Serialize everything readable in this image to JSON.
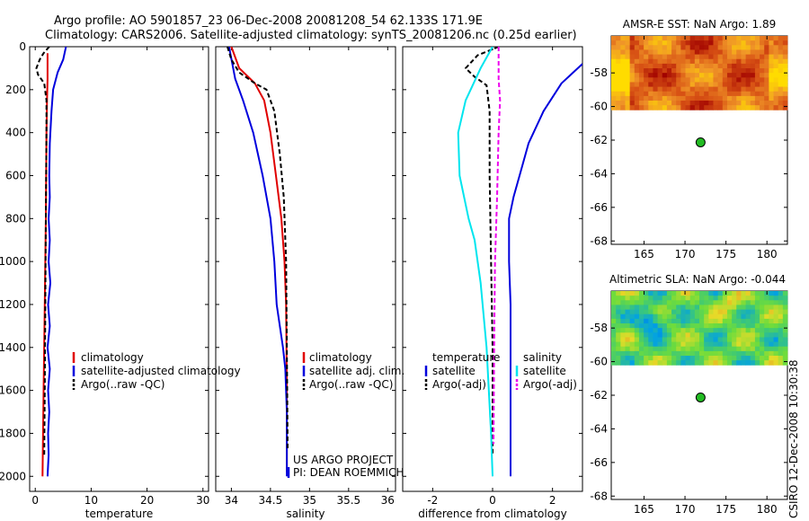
{
  "header": {
    "title_line1": "Argo profile: AO 5901857_23 06-Dec-2008 20081208_54 62.133S 171.9E",
    "title_line2": "Climatology: CARS2006. Satellite-adjusted climatology: synTS_20081206.nc (0.25d earlier)"
  },
  "side_label": "CSIRO 12-Dec-2008 10:30:38",
  "colors": {
    "climatology": "#e00000",
    "satellite": "#0000dd",
    "argo": "#000000",
    "salinity_satellite": "#00e5ee",
    "salinity_argo": "#ee00ee",
    "float_marker": "#22bb22"
  },
  "chart_data": [
    {
      "id": "temperature",
      "type": "line",
      "xlabel": "temperature",
      "ylabel": "",
      "xlim": [
        -1,
        31
      ],
      "ylim": [
        0,
        2070
      ],
      "y_reversed": true,
      "xticks": [
        0,
        10,
        20,
        30
      ],
      "yticks": [
        0,
        200,
        400,
        600,
        800,
        1000,
        1200,
        1400,
        1600,
        1800,
        2000
      ],
      "series": [
        {
          "name": "climatology",
          "color": "#e00000",
          "dash": "",
          "points": [
            [
              2.2,
              30
            ],
            [
              2.2,
              150
            ],
            [
              2.1,
              250
            ],
            [
              2.0,
              400
            ],
            [
              1.9,
              800
            ],
            [
              1.7,
              1200
            ],
            [
              1.5,
              1600
            ],
            [
              1.3,
              2000
            ]
          ]
        },
        {
          "name": "satellite-adjusted climatology",
          "color": "#0000dd",
          "dash": "",
          "points": [
            [
              5.5,
              0
            ],
            [
              5.0,
              60
            ],
            [
              4.0,
              120
            ],
            [
              3.2,
              200
            ],
            [
              2.9,
              300
            ],
            [
              2.6,
              450
            ],
            [
              2.5,
              600
            ],
            [
              2.6,
              700
            ],
            [
              2.4,
              800
            ],
            [
              2.6,
              900
            ],
            [
              2.4,
              1000
            ],
            [
              2.7,
              1100
            ],
            [
              2.3,
              1200
            ],
            [
              2.6,
              1300
            ],
            [
              2.2,
              1400
            ],
            [
              2.6,
              1500
            ],
            [
              2.3,
              1600
            ],
            [
              2.5,
              1700
            ],
            [
              2.3,
              1800
            ],
            [
              2.4,
              1900
            ],
            [
              2.2,
              2000
            ]
          ]
        },
        {
          "name": "Argo(..raw -QC)",
          "color": "#000000",
          "dash": "5,3",
          "points": [
            [
              2.5,
              0
            ],
            [
              1.5,
              30
            ],
            [
              0.8,
              60
            ],
            [
              0.2,
              100
            ],
            [
              0.5,
              130
            ],
            [
              1.6,
              170
            ],
            [
              2.0,
              250
            ],
            [
              2.0,
              400
            ],
            [
              1.9,
              800
            ],
            [
              1.8,
              1200
            ],
            [
              1.7,
              1600
            ],
            [
              1.6,
              1900
            ]
          ]
        }
      ],
      "legend": {
        "placement": "lower-right",
        "entries": [
          "climatology",
          "satellite-adjusted climatology",
          "Argo(..raw -QC)"
        ]
      }
    },
    {
      "id": "salinity",
      "type": "line",
      "xlabel": "salinity",
      "ylabel": "",
      "xlim": [
        33.8,
        36.1
      ],
      "ylim": [
        0,
        2070
      ],
      "y_reversed": true,
      "xticks": [
        34,
        34.5,
        35,
        35.5,
        36
      ],
      "xticklabels": [
        "34",
        "34.5",
        "35",
        "35.5",
        "36"
      ],
      "series": [
        {
          "name": "climatology",
          "color": "#e00000",
          "dash": "",
          "points": [
            [
              34.0,
              0
            ],
            [
              34.1,
              100
            ],
            [
              34.3,
              170
            ],
            [
              34.42,
              250
            ],
            [
              34.5,
              400
            ],
            [
              34.57,
              600
            ],
            [
              34.64,
              800
            ],
            [
              34.68,
              1000
            ],
            [
              34.7,
              1200
            ],
            [
              34.71,
              1600
            ],
            [
              34.71,
              1980
            ]
          ]
        },
        {
          "name": "satellite adj. clim.",
          "color": "#0000dd",
          "dash": "",
          "points": [
            [
              33.97,
              0
            ],
            [
              34.05,
              150
            ],
            [
              34.15,
              250
            ],
            [
              34.28,
              400
            ],
            [
              34.4,
              600
            ],
            [
              34.5,
              800
            ],
            [
              34.55,
              1000
            ],
            [
              34.58,
              1200
            ],
            [
              34.62,
              1300
            ],
            [
              34.66,
              1400
            ],
            [
              34.69,
              1500
            ],
            [
              34.71,
              1700
            ],
            [
              34.71,
              2000
            ]
          ]
        },
        {
          "name": "Argo(..raw -QC)",
          "color": "#000000",
          "dash": "5,3",
          "points": [
            [
              33.95,
              0
            ],
            [
              34.0,
              60
            ],
            [
              34.1,
              120
            ],
            [
              34.3,
              170
            ],
            [
              34.45,
              200
            ],
            [
              34.55,
              300
            ],
            [
              34.62,
              500
            ],
            [
              34.67,
              700
            ],
            [
              34.7,
              1000
            ],
            [
              34.71,
              1400
            ],
            [
              34.72,
              1880
            ]
          ]
        }
      ],
      "legend": {
        "placement": "lower-right",
        "entries": [
          "climatology",
          "satellite adj. clim.",
          "Argo(..raw -QC)"
        ]
      },
      "annotation": [
        "US ARGO PROJECT",
        "PI: DEAN ROEMMICH"
      ]
    },
    {
      "id": "difference",
      "type": "line",
      "xlabel": "difference from climatology",
      "ylabel": "",
      "xlim": [
        -3,
        3
      ],
      "ylim": [
        0,
        2070
      ],
      "y_reversed": true,
      "xticks": [
        -2,
        0,
        2
      ],
      "series": [
        {
          "name": "temperature satellite",
          "color": "#0000dd",
          "dash": "",
          "points": [
            [
              3.0,
              80
            ],
            [
              2.3,
              170
            ],
            [
              1.7,
              300
            ],
            [
              1.2,
              450
            ],
            [
              0.9,
              600
            ],
            [
              0.7,
              700
            ],
            [
              0.55,
              800
            ],
            [
              0.55,
              1000
            ],
            [
              0.6,
              1200
            ],
            [
              0.6,
              1600
            ],
            [
              0.6,
              2000
            ]
          ]
        },
        {
          "name": "temperature Argo(-adj)",
          "color": "#000000",
          "dash": "5,3",
          "points": [
            [
              0.2,
              0
            ],
            [
              -0.5,
              40
            ],
            [
              -0.9,
              100
            ],
            [
              -0.6,
              140
            ],
            [
              -0.2,
              180
            ],
            [
              -0.1,
              300
            ],
            [
              -0.1,
              600
            ],
            [
              -0.05,
              1000
            ],
            [
              0.0,
              1400
            ],
            [
              0.0,
              1900
            ]
          ]
        },
        {
          "name": "salinity satellite",
          "color": "#00e5ee",
          "dash": "",
          "points": [
            [
              0.0,
              0
            ],
            [
              -0.4,
              100
            ],
            [
              -0.9,
              250
            ],
            [
              -1.15,
              400
            ],
            [
              -1.1,
              600
            ],
            [
              -0.8,
              800
            ],
            [
              -0.6,
              900
            ],
            [
              -0.4,
              1100
            ],
            [
              -0.2,
              1400
            ],
            [
              -0.05,
              1800
            ],
            [
              0.0,
              2000
            ]
          ]
        },
        {
          "name": "salinity Argo(-adj)",
          "color": "#ee00ee",
          "dash": "5,3",
          "points": [
            [
              0.2,
              0
            ],
            [
              0.2,
              150
            ],
            [
              0.25,
              250
            ],
            [
              0.2,
              400
            ],
            [
              0.15,
              700
            ],
            [
              0.08,
              1000
            ],
            [
              0.05,
              1400
            ],
            [
              0.03,
              1850
            ]
          ]
        }
      ],
      "legend": {
        "placement": "lower-center",
        "groups": [
          {
            "header": "temperature",
            "entries": [
              "satellite",
              "Argo(-adj)"
            ]
          },
          {
            "header": "salinity",
            "entries": [
              "satellite",
              "Argo(-adj)"
            ]
          }
        ]
      }
    },
    {
      "id": "sst_map",
      "type": "heatmap",
      "title": "AMSR-E SST: NaN Argo: 1.89",
      "xlim": [
        161,
        182.5
      ],
      "ylim": [
        -68.2,
        -55.8
      ],
      "xticks": [
        165,
        170,
        175,
        180
      ],
      "yticks": [
        -58,
        -60,
        -62,
        -64,
        -66,
        -68
      ],
      "data_extent": {
        "x": [
          161,
          182.5
        ],
        "y": [
          -60.2,
          -55.8
        ]
      },
      "marker": {
        "lon": 171.9,
        "lat": -62.133
      }
    },
    {
      "id": "sla_map",
      "type": "heatmap",
      "title": "Altimetric SLA: NaN Argo: -0.044",
      "xlim": [
        161,
        182.5
      ],
      "ylim": [
        -68.2,
        -55.8
      ],
      "xticks": [
        165,
        170,
        175,
        180
      ],
      "yticks": [
        -58,
        -60,
        -62,
        -64,
        -66,
        -68
      ],
      "data_extent": {
        "x": [
          161,
          182.5
        ],
        "y": [
          -60.2,
          -55.8
        ]
      },
      "marker": {
        "lon": 171.9,
        "lat": -62.133
      }
    }
  ]
}
